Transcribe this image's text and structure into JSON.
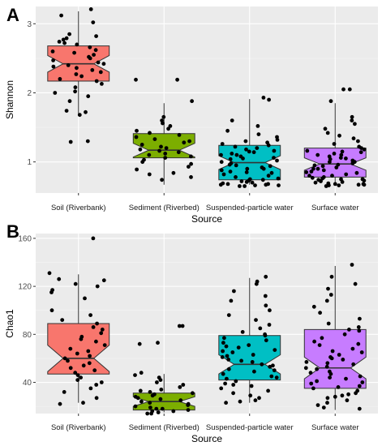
{
  "chart_data": [
    {
      "type": "box",
      "panel_label": "A",
      "xlabel": "Source",
      "ylabel": "Shannon",
      "categories": [
        "Soil (Riverbank)",
        "Sediment (Riverbed)",
        "Suspended-particle water",
        "Surface water"
      ],
      "colors": [
        "#f8766d",
        "#7cae00",
        "#00bfc4",
        "#c77cff"
      ],
      "yticks": [
        1,
        2,
        3
      ],
      "ylim": [
        0.55,
        3.25
      ],
      "notched": true,
      "grid": true,
      "boxes": [
        {
          "category": "Soil (Riverbank)",
          "whisker_low": 1.68,
          "q1": 2.17,
          "median": 2.42,
          "q3": 2.68,
          "whisker_high": 3.18,
          "notch": 0.12
        },
        {
          "category": "Sediment (Riverbed)",
          "whisker_low": 0.67,
          "q1": 1.06,
          "median": 1.17,
          "q3": 1.41,
          "whisker_high": 1.85,
          "notch": 0.1
        },
        {
          "category": "Suspended-particle water",
          "whisker_low": 0.67,
          "q1": 0.74,
          "median": 0.99,
          "q3": 1.24,
          "whisker_high": 1.91,
          "notch": 0.1
        },
        {
          "category": "Surface water",
          "whisker_low": 0.67,
          "q1": 0.78,
          "median": 0.97,
          "q3": 1.2,
          "whisker_high": 1.85,
          "notch": 0.09
        }
      ],
      "points": [
        [
          3.21,
          3.12,
          3.02,
          2.85,
          2.82,
          2.79,
          2.77,
          2.74,
          2.72,
          2.7,
          2.66,
          2.62,
          2.6,
          2.58,
          2.55,
          2.52,
          2.5,
          2.47,
          2.44,
          2.42,
          2.4,
          2.38,
          2.36,
          2.33,
          2.3,
          2.27,
          2.24,
          2.2,
          2.17,
          2.13,
          2.08,
          2.02,
          2.0,
          1.95,
          1.88,
          1.74,
          1.72,
          1.68,
          1.3,
          1.29
        ],
        [
          2.19,
          2.19,
          1.88,
          1.65,
          1.6,
          1.56,
          1.52,
          1.48,
          1.45,
          1.42,
          1.39,
          1.36,
          1.33,
          1.3,
          1.28,
          1.25,
          1.22,
          1.2,
          1.18,
          1.16,
          1.14,
          1.12,
          1.1,
          1.08,
          1.06,
          1.03,
          1.0,
          0.97,
          0.93,
          0.89,
          0.84,
          0.82,
          0.78,
          0.74
        ],
        [
          1.93,
          1.9,
          1.6,
          1.52,
          1.45,
          1.4,
          1.36,
          1.32,
          1.28,
          1.26,
          1.24,
          1.22,
          1.2,
          1.18,
          1.16,
          1.14,
          1.12,
          1.1,
          1.08,
          1.06,
          1.04,
          1.02,
          1.0,
          0.98,
          0.96,
          0.94,
          0.92,
          0.9,
          0.88,
          0.86,
          0.84,
          0.82,
          0.8,
          0.78,
          0.76,
          0.75,
          0.74,
          0.73,
          0.72,
          0.71,
          0.7,
          0.69,
          0.68,
          0.68,
          0.67,
          0.67,
          0.66,
          0.66,
          0.65,
          0.65,
          1.05,
          1.15,
          0.95,
          0.85,
          1.3,
          0.9,
          1.1
        ],
        [
          2.05,
          2.05,
          1.88,
          1.65,
          1.6,
          1.55,
          1.48,
          1.42,
          1.38,
          1.34,
          1.3,
          1.26,
          1.22,
          1.2,
          1.18,
          1.16,
          1.14,
          1.12,
          1.1,
          1.08,
          1.06,
          1.04,
          1.02,
          1.0,
          0.98,
          0.96,
          0.94,
          0.92,
          0.9,
          0.88,
          0.86,
          0.84,
          0.82,
          0.8,
          0.78,
          0.77,
          0.76,
          0.75,
          0.74,
          0.73,
          0.72,
          0.71,
          0.7,
          0.69,
          0.68,
          0.68,
          0.67,
          0.67,
          0.66,
          0.66,
          0.65,
          0.95,
          1.0,
          1.05,
          0.85,
          0.9,
          1.1,
          1.15,
          0.8,
          0.75
        ]
      ]
    },
    {
      "type": "box",
      "panel_label": "B",
      "xlabel": "Source",
      "ylabel": "Chao1",
      "categories": [
        "Soil (Riverbank)",
        "Sediment (Riverbed)",
        "Suspended-particle water",
        "Surface water"
      ],
      "colors": [
        "#f8766d",
        "#7cae00",
        "#00bfc4",
        "#c77cff"
      ],
      "yticks": [
        40,
        80,
        120,
        160
      ],
      "ylim": [
        14,
        164
      ],
      "notched": true,
      "grid": true,
      "boxes": [
        {
          "category": "Soil (Riverbank)",
          "whisker_low": 23,
          "q1": 47,
          "median": 60,
          "q3": 89,
          "whisker_high": 130,
          "notch": 11
        },
        {
          "category": "Sediment (Riverbed)",
          "whisker_low": 15,
          "q1": 17,
          "median": 24,
          "q3": 31,
          "whisker_high": 47,
          "notch": 4
        },
        {
          "category": "Suspended-particle water",
          "whisker_low": 23,
          "q1": 42,
          "median": 55,
          "q3": 79,
          "whisker_high": 127,
          "notch": 8
        },
        {
          "category": "Surface water",
          "whisker_low": 17,
          "q1": 35,
          "median": 52,
          "q3": 84,
          "whisker_high": 137,
          "notch": 9
        }
      ],
      "points": [
        [
          160,
          131,
          126,
          125,
          122,
          120,
          117,
          115,
          110,
          100,
          96,
          92,
          89,
          86,
          84,
          81,
          78,
          76,
          74,
          71,
          68,
          66,
          64,
          62,
          60,
          58,
          56,
          54,
          52,
          50,
          48,
          46,
          44,
          42,
          40,
          38,
          35,
          32,
          27,
          23,
          22
        ],
        [
          87,
          87,
          73,
          72,
          48,
          46,
          44,
          42,
          40,
          38,
          36,
          34,
          33,
          32,
          31,
          30,
          29,
          28,
          27,
          26,
          25,
          24,
          23,
          22,
          21,
          20,
          19,
          18,
          18,
          17,
          16,
          16,
          15,
          14,
          14
        ],
        [
          128,
          124,
          122,
          116,
          112,
          108,
          104,
          100,
          96,
          92,
          88,
          85,
          82,
          79,
          77,
          75,
          73,
          71,
          69,
          67,
          65,
          63,
          61,
          59,
          57,
          55,
          53,
          51,
          49,
          47,
          45,
          43,
          41,
          39,
          37,
          35,
          33,
          31,
          29,
          27,
          25,
          24,
          23,
          62,
          58,
          50,
          70,
          44,
          38,
          80,
          66,
          54
        ],
        [
          138,
          128,
          122,
          118,
          113,
          108,
          103,
          98,
          93,
          89,
          86,
          83,
          80,
          77,
          74,
          71,
          68,
          65,
          63,
          61,
          59,
          57,
          55,
          53,
          51,
          49,
          47,
          45,
          43,
          41,
          39,
          37,
          35,
          33,
          31,
          29,
          27,
          25,
          23,
          21,
          19,
          18,
          60,
          56,
          48,
          72,
          44,
          40,
          66,
          84,
          52,
          36,
          30,
          28
        ]
      ]
    }
  ]
}
